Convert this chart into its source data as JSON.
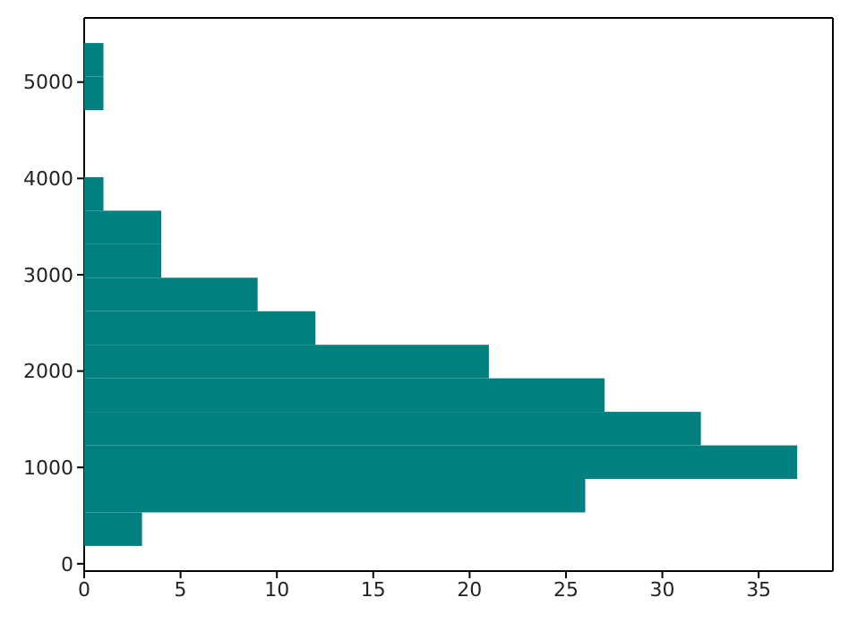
{
  "chart_data": {
    "type": "histogram",
    "orientation": "horizontal",
    "color": "#008080",
    "bins": [
      185,
      533,
      881,
      1229,
      1577,
      1925,
      2273,
      2621,
      2969,
      3317,
      3665,
      4013,
      4361,
      4709,
      5057,
      5405
    ],
    "values": [
      3,
      26,
      37,
      32,
      27,
      21,
      12,
      9,
      4,
      4,
      1,
      0,
      0,
      1,
      1
    ],
    "xlim": [
      0,
      38.85
    ],
    "xticks": [
      0,
      5,
      10,
      15,
      20,
      25,
      30,
      35
    ],
    "ylim": [
      -76,
      5666
    ],
    "yticks": [
      0,
      1000,
      2000,
      3000,
      4000,
      5000
    ],
    "grid": false,
    "legend": false
  }
}
